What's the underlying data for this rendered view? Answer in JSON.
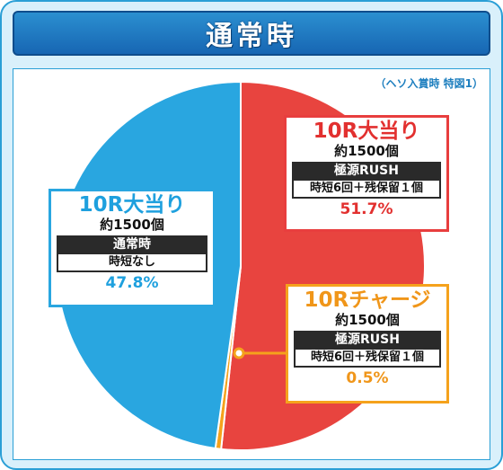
{
  "title": "通常時",
  "note": "（ヘソ入賞時 特図1）",
  "chart_data": {
    "type": "pie",
    "title": "通常時",
    "slices": [
      {
        "name": "10R大当り 極源RUSH",
        "value": 51.7,
        "color": "#e8443f"
      },
      {
        "name": "10Rチャージ 極源RUSH",
        "value": 0.5,
        "color": "#f5a21c"
      },
      {
        "name": "10R大当り 通常時",
        "value": 47.8,
        "color": "#29a6e0"
      }
    ]
  },
  "labels": {
    "red": {
      "head": "10R大当り",
      "sub": "約1500個",
      "mode": "極源RUSH",
      "detail": "時短6回＋残保留１個",
      "pct": "51.7%"
    },
    "orange": {
      "head": "10Rチャージ",
      "sub": "約1500個",
      "mode": "極源RUSH",
      "detail": "時短6回＋残保留１個",
      "pct": "0.5%"
    },
    "blue": {
      "head": "10R大当り",
      "sub": "約1500個",
      "mode": "通常時",
      "detail": "時短なし",
      "pct": "47.8%"
    }
  }
}
